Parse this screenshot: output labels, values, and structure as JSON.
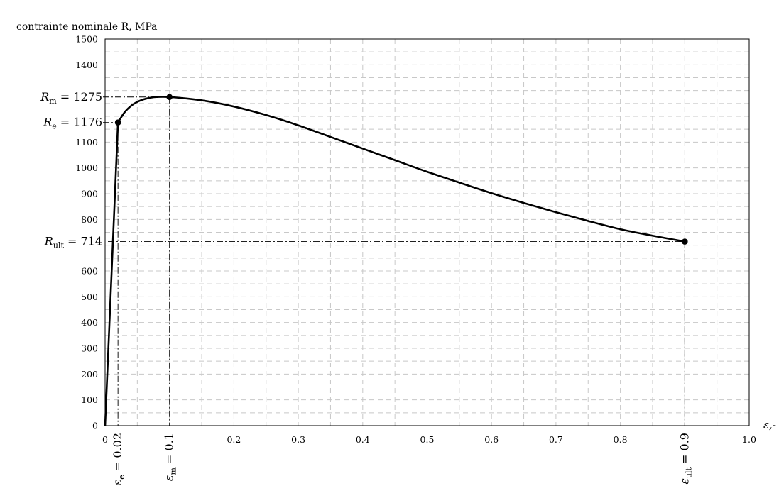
{
  "chart_data": {
    "type": "line",
    "title": "",
    "ylabel": "contrainte nominale R, MPa",
    "xlabel": "ε,-",
    "xlim": [
      0,
      1.0
    ],
    "ylim": [
      0,
      1500
    ],
    "grid": true,
    "x_ticks": [
      {
        "value": 0,
        "label": "0"
      },
      {
        "value": 0.2,
        "label": "0.2"
      },
      {
        "value": 0.3,
        "label": "0.3"
      },
      {
        "value": 0.4,
        "label": "0.4"
      },
      {
        "value": 0.5,
        "label": "0.5"
      },
      {
        "value": 0.6,
        "label": "0.6"
      },
      {
        "value": 0.7,
        "label": "0.7"
      },
      {
        "value": 0.8,
        "label": "0.8"
      },
      {
        "value": 1.0,
        "label": "1.0"
      }
    ],
    "y_ticks": [
      0,
      100,
      200,
      300,
      400,
      500,
      600,
      800,
      900,
      1000,
      1100,
      1400,
      1500
    ],
    "series": [
      {
        "points": [
          [
            0,
            0
          ],
          [
            0.02,
            1176
          ],
          [
            0.03,
            1215
          ],
          [
            0.04,
            1240
          ],
          [
            0.05,
            1256
          ],
          [
            0.06,
            1266
          ],
          [
            0.07,
            1272
          ],
          [
            0.08,
            1275
          ],
          [
            0.1,
            1275
          ],
          [
            0.15,
            1262
          ],
          [
            0.2,
            1238
          ],
          [
            0.25,
            1205
          ],
          [
            0.3,
            1165
          ],
          [
            0.35,
            1120
          ],
          [
            0.4,
            1075
          ],
          [
            0.45,
            1030
          ],
          [
            0.5,
            985
          ],
          [
            0.55,
            943
          ],
          [
            0.6,
            902
          ],
          [
            0.65,
            864
          ],
          [
            0.7,
            828
          ],
          [
            0.75,
            794
          ],
          [
            0.8,
            762
          ],
          [
            0.85,
            737
          ],
          [
            0.9,
            714
          ]
        ]
      }
    ],
    "key_points": [
      {
        "name": "Re",
        "x": 0.02,
        "y": 1176,
        "y_label": "R_e = 1176",
        "x_label": "ε_e = 0.02"
      },
      {
        "name": "Rm",
        "x": 0.1,
        "y": 1275,
        "y_label": "R_m = 1275",
        "x_label": "ε_m = 0.1"
      },
      {
        "name": "Rult",
        "x": 0.9,
        "y": 714,
        "y_label": "R_ult = 714",
        "x_label": "ε_ult = 0.9"
      }
    ],
    "annotations": {
      "Re_y": {
        "sym": "R",
        "sub": "e",
        "value": "1176"
      },
      "Rm_y": {
        "sym": "R",
        "sub": "m",
        "value": "1275"
      },
      "Rult_y": {
        "sym": "R",
        "sub": "ult",
        "value": "714"
      },
      "ee_x": {
        "sym": "ε",
        "sub": "e",
        "value": "0.02"
      },
      "em_x": {
        "sym": "ε",
        "sub": "m",
        "value": "0.1"
      },
      "eult_x": {
        "sym": "ε",
        "sub": "ult",
        "value": "0.9"
      }
    }
  }
}
